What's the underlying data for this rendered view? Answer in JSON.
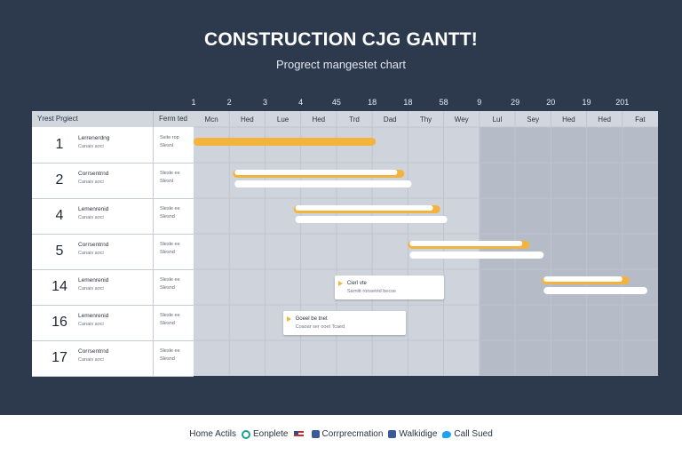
{
  "chart_data": {
    "type": "gantt",
    "title": "CONSTRUCTION CJG GANTT!",
    "subtitle": "Progrect mangestet chart",
    "top_numbers": [
      "1",
      "2",
      "3",
      "4",
      "45",
      "18",
      "18",
      "58",
      "9",
      "29",
      "20",
      "19",
      "201"
    ],
    "time_labels": [
      "Mcn",
      "Hed",
      "Lue",
      "Hed",
      "Trd",
      "Dad",
      "Thy",
      "Wey",
      "Lul",
      "Sey",
      "Hed",
      "Hed",
      "Fat"
    ],
    "header": {
      "task": "Yrest Prgiect",
      "resource": "Ferm ted"
    },
    "tasks": [
      {
        "id": "1",
        "name": "Lerrenerdng",
        "sub": "Canais aoci",
        "res1": "Ssite rop",
        "res2": "Slesnl"
      },
      {
        "id": "2",
        "name": "Corrsentrnd",
        "sub": "Canais aoci",
        "res1": "Slesle ee",
        "res2": "Slesnl"
      },
      {
        "id": "4",
        "name": "Lemenrenid",
        "sub": "Canais aoci",
        "res1": "Slesle ee",
        "res2": "Slesnd"
      },
      {
        "id": "5",
        "name": "Corrsentrnd",
        "sub": "Canais aoci",
        "res1": "Slesle ee",
        "res2": "Slesnd"
      },
      {
        "id": "14",
        "name": "Lemenrenid",
        "sub": "Canais aoci",
        "res1": "Slesle ee",
        "res2": "Slesnd"
      },
      {
        "id": "16",
        "name": "Lemenrenid",
        "sub": "Canais aoci",
        "res1": "Slesle ee",
        "res2": "Slesnd"
      },
      {
        "id": "17",
        "name": "Corrsentrnd",
        "sub": "Canais aoci",
        "res1": "Slesle ee",
        "res2": "Slesnd"
      }
    ],
    "bars": [
      {
        "row": 0,
        "start": 0.0,
        "end": 5.1,
        "kind": "progress"
      },
      {
        "row": 1,
        "start": 1.1,
        "end": 5.9,
        "kind": "progress"
      },
      {
        "row": 1,
        "start": 1.15,
        "end": 6.1,
        "kind": "plan"
      },
      {
        "row": 2,
        "start": 2.8,
        "end": 6.9,
        "kind": "progress"
      },
      {
        "row": 2,
        "start": 2.85,
        "end": 7.1,
        "kind": "plan"
      },
      {
        "row": 3,
        "start": 6.0,
        "end": 9.4,
        "kind": "progress"
      },
      {
        "row": 3,
        "start": 6.05,
        "end": 9.8,
        "kind": "plan"
      },
      {
        "row": 4,
        "start": 9.75,
        "end": 12.2,
        "kind": "progress"
      },
      {
        "row": 4,
        "start": 9.8,
        "end": 12.7,
        "kind": "plan"
      }
    ],
    "shaded_from_index": 8,
    "callouts": [
      {
        "row": 4,
        "start": 3.95,
        "end": 7.0,
        "title": "Cierl vte",
        "sub": "Sarnitt ronsetrid becse"
      },
      {
        "row": 5,
        "start": 2.5,
        "end": 5.95,
        "title": "Goeel be tnet",
        "sub": "Coaoar ser ooet Tcaed"
      }
    ],
    "colors": {
      "progress": "#f4b33c",
      "plan": "#ffffff",
      "grid_bg": "#cfd4dc",
      "grid_shaded": "#b6bcc7",
      "grid_line": "#bfc5cf",
      "header": "#d2d7df"
    }
  },
  "footer": {
    "items": [
      {
        "icon": "none",
        "label": "Home Actils"
      },
      {
        "icon": "check-circle-icon",
        "label": "Eonplete"
      },
      {
        "icon": "flag-icon",
        "label": ""
      },
      {
        "icon": "facebook-icon",
        "label": "Corrprecmation"
      },
      {
        "icon": "facebook-icon",
        "label": "Walkidige"
      },
      {
        "icon": "twitter-icon",
        "label": "Call Sued"
      }
    ]
  }
}
